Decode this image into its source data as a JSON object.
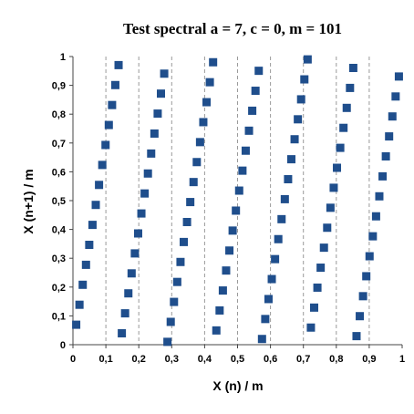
{
  "chart_data": {
    "type": "scatter",
    "title": "Test spectral a = 7, c = 0, m = 101",
    "xlabel": "X (n) / m",
    "ylabel": "X (n+1) / m",
    "xlim": [
      0,
      1
    ],
    "ylim": [
      0,
      1
    ],
    "x_ticks": [
      "0",
      "0,1",
      "0,2",
      "0,3",
      "0,4",
      "0,5",
      "0,6",
      "0,7",
      "0,8",
      "0,9",
      "1"
    ],
    "y_ticks": [
      "0",
      "0,1",
      "0,2",
      "0,3",
      "0,4",
      "0,5",
      "0,6",
      "0,7",
      "0,8",
      "0,9",
      "1"
    ],
    "grid": "vertical-dashed",
    "legend": "none",
    "marker": "square",
    "marker_color": "#1f4e8c",
    "series": [
      {
        "x": [
          0.0099,
          0.0198,
          0.0297,
          0.0396,
          0.0495,
          0.0594,
          0.0693,
          0.0792,
          0.0891,
          0.099,
          0.1089,
          0.1188,
          0.1287,
          0.1386,
          0.1485,
          0.1584,
          0.1683,
          0.1782,
          0.1881,
          0.198,
          0.2079,
          0.2178,
          0.2277,
          0.2376,
          0.2475,
          0.2574,
          0.2673,
          0.2772,
          0.2871,
          0.297,
          0.3069,
          0.3168,
          0.3267,
          0.3366,
          0.3465,
          0.3564,
          0.3663,
          0.3762,
          0.3861,
          0.396,
          0.4059,
          0.4158,
          0.4257,
          0.4356,
          0.4455,
          0.4554,
          0.4653,
          0.4752,
          0.4851,
          0.495,
          0.5049,
          0.5149,
          0.5248,
          0.5347,
          0.5446,
          0.5545,
          0.5644,
          0.5743,
          0.5842,
          0.5941,
          0.604,
          0.6139,
          0.6238,
          0.6337,
          0.6436,
          0.6535,
          0.6634,
          0.6733,
          0.6832,
          0.6931,
          0.703,
          0.7129,
          0.7228,
          0.7327,
          0.7426,
          0.7525,
          0.7624,
          0.7723,
          0.7822,
          0.7921,
          0.802,
          0.8119,
          0.8218,
          0.8317,
          0.8416,
          0.8515,
          0.8614,
          0.8713,
          0.8812,
          0.8911,
          0.901,
          0.9109,
          0.9208,
          0.9307,
          0.9406,
          0.9505,
          0.9604,
          0.9703,
          0.9802,
          0.9901
        ],
        "y": [
          0.0693,
          0.1386,
          0.2079,
          0.2772,
          0.3465,
          0.4158,
          0.4851,
          0.5545,
          0.6238,
          0.6931,
          0.7624,
          0.8317,
          0.901,
          0.9703,
          0.0396,
          0.1089,
          0.1782,
          0.2475,
          0.3168,
          0.3861,
          0.4554,
          0.5248,
          0.5941,
          0.6634,
          0.7327,
          0.802,
          0.8713,
          0.9406,
          0.0099,
          0.0792,
          0.1485,
          0.2178,
          0.2871,
          0.3564,
          0.4257,
          0.495,
          0.5644,
          0.6337,
          0.703,
          0.7723,
          0.8416,
          0.9109,
          0.9802,
          0.0495,
          0.1188,
          0.1881,
          0.2574,
          0.3267,
          0.396,
          0.4653,
          0.5347,
          0.604,
          0.6733,
          0.7426,
          0.8119,
          0.8812,
          0.9505,
          0.0198,
          0.0891,
          0.1584,
          0.2277,
          0.297,
          0.3663,
          0.4356,
          0.505,
          0.5743,
          0.6436,
          0.7129,
          0.7822,
          0.8515,
          0.9208,
          0.9901,
          0.0594,
          0.1287,
          0.198,
          0.2673,
          0.3366,
          0.4059,
          0.4752,
          0.5446,
          0.6139,
          0.6832,
          0.7525,
          0.8218,
          0.8911,
          0.9604,
          0.0297,
          0.099,
          0.1683,
          0.2376,
          0.3069,
          0.3762,
          0.4455,
          0.5149,
          0.5842,
          0.6535,
          0.7228,
          0.7921,
          0.8614,
          0.9307
        ]
      }
    ]
  }
}
